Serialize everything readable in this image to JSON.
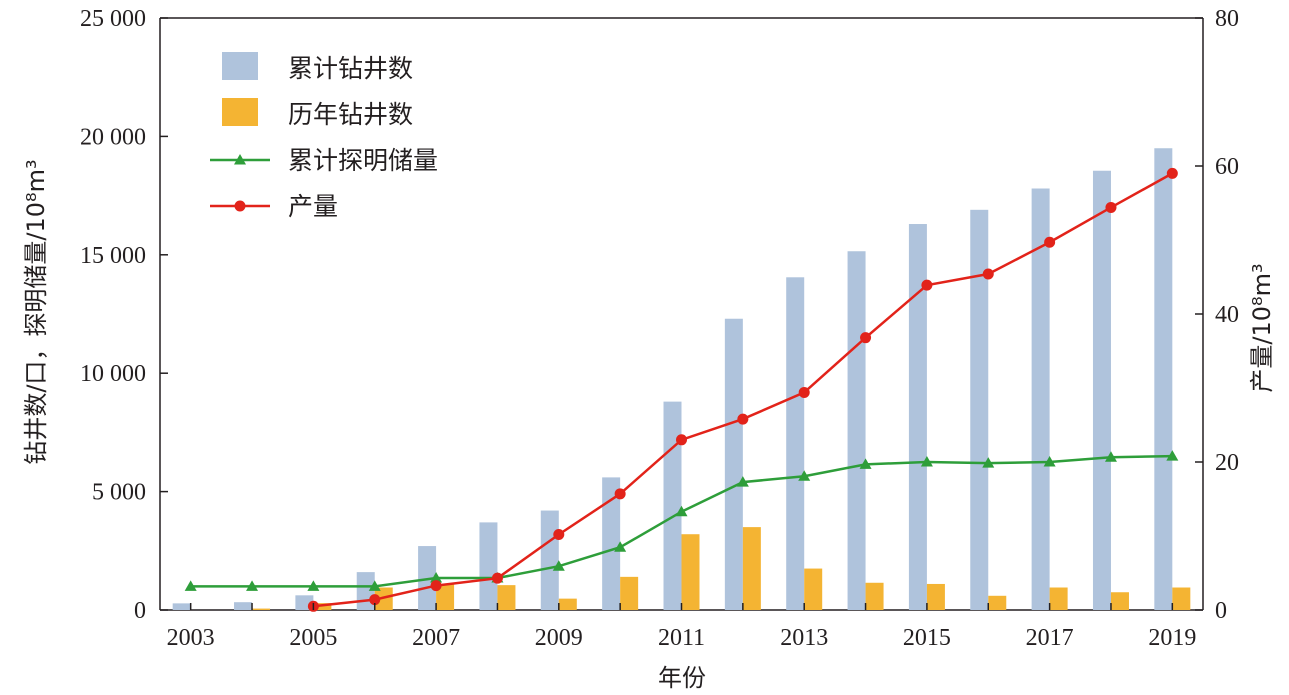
{
  "chart_data": {
    "type": "bar",
    "categories": [
      "2003",
      "2004",
      "2005",
      "2006",
      "2007",
      "2008",
      "2009",
      "2010",
      "2011",
      "2012",
      "2013",
      "2014",
      "2015",
      "2016",
      "2017",
      "2018",
      "2019"
    ],
    "x_tick_labels": [
      "2003",
      "2005",
      "2007",
      "2009",
      "2011",
      "2013",
      "2015",
      "2017",
      "2019"
    ],
    "xlabel": "年份",
    "ylabel_left": "钻井数/口，探明储量/10⁸m³",
    "ylabel_right": "产量/10⁸m³",
    "ylim_left": [
      0,
      25000
    ],
    "ylim_right": [
      0,
      80
    ],
    "y_ticks_left": [
      "0",
      "5 000",
      "10 000",
      "15 000",
      "20 000",
      "25 000"
    ],
    "y_ticks_right": [
      "0",
      "20",
      "40",
      "60",
      "80"
    ],
    "grid": false,
    "legend_position": "top-left",
    "series": [
      {
        "name": "累计钻井数",
        "kind": "bar",
        "axis": "left",
        "color": "#afc3dc",
        "values": [
          280,
          330,
          620,
          1600,
          2700,
          3700,
          4200,
          5600,
          8800,
          12300,
          14050,
          15150,
          16300,
          16900,
          17800,
          18550,
          19500
        ]
      },
      {
        "name": "历年钻井数",
        "kind": "bar",
        "axis": "left",
        "color": "#f4b433",
        "values": [
          0,
          60,
          290,
          950,
          1100,
          1050,
          480,
          1400,
          3200,
          3500,
          1750,
          1150,
          1100,
          600,
          950,
          750,
          950
        ]
      },
      {
        "name": "累计探明储量",
        "kind": "line",
        "axis": "left",
        "color": "#2e9e3a",
        "marker": "triangle",
        "values": [
          1000,
          1000,
          1000,
          1000,
          1350,
          1350,
          1850,
          2650,
          4150,
          5400,
          5650,
          6150,
          6250,
          6200,
          6250,
          6450,
          6500
        ]
      },
      {
        "name": "产量",
        "kind": "line",
        "axis": "right",
        "color": "#e2231a",
        "marker": "circle",
        "values": [
          null,
          null,
          0.5,
          1.4,
          3.3,
          4.3,
          10.2,
          15.7,
          23.0,
          25.8,
          29.4,
          36.8,
          43.9,
          45.4,
          49.7,
          54.4,
          59.0
        ]
      }
    ]
  }
}
